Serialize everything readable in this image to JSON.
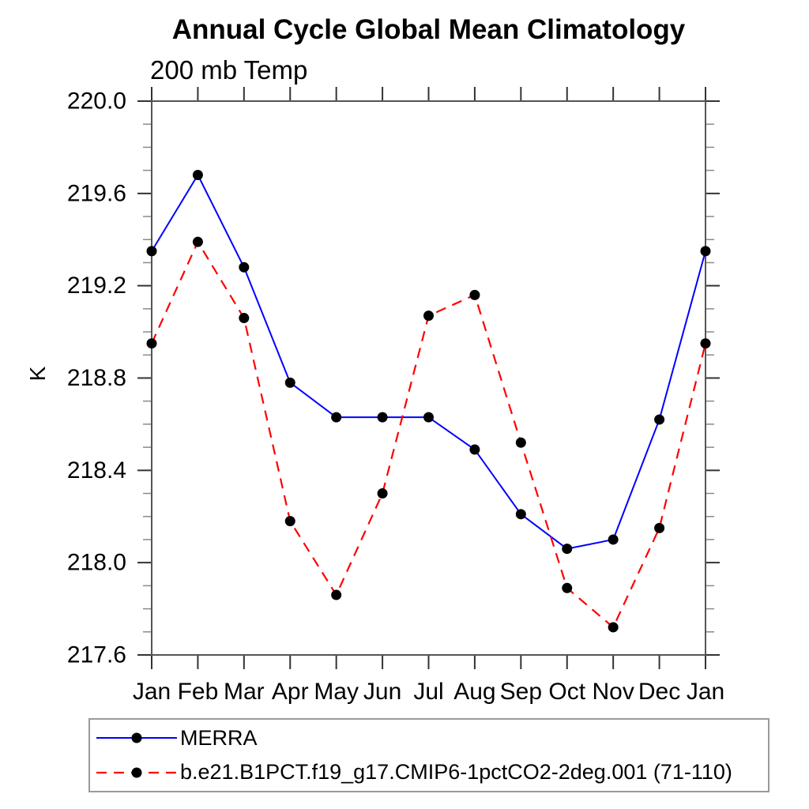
{
  "page": {
    "background": "#ffffff"
  },
  "chart_data": {
    "type": "line",
    "title": "Annual Cycle Global Mean Climatology",
    "subtitle": "200 mb Temp",
    "ylabel": "K",
    "x_categories": [
      "Jan",
      "Feb",
      "Mar",
      "Apr",
      "May",
      "Jun",
      "Jul",
      "Aug",
      "Sep",
      "Oct",
      "Nov",
      "Dec",
      "Jan"
    ],
    "ylim": [
      217.6,
      220.0
    ],
    "y_major_ticks": [
      "220.0",
      "219.6",
      "219.2",
      "218.8",
      "218.4",
      "218.0",
      "217.6"
    ],
    "y_minor_step": 0.1,
    "grid": false,
    "legend_position": "bottom-left-box",
    "axis_color": "#555555",
    "series": [
      {
        "name": "MERRA",
        "color": "#0000ff",
        "style": "solid",
        "marker": "circle",
        "marker_color": "#000000",
        "values": [
          219.35,
          219.68,
          219.28,
          218.78,
          218.63,
          218.63,
          218.63,
          218.49,
          218.21,
          218.06,
          218.1,
          218.62,
          219.35
        ]
      },
      {
        "name": "b.e21.B1PCT.f19_g17.CMIP6-1pctCO2-2deg.001 (71-110)",
        "color": "#ff0000",
        "style": "dashed",
        "marker": "circle",
        "marker_color": "#000000",
        "values": [
          218.95,
          219.39,
          219.06,
          218.18,
          217.86,
          218.3,
          219.07,
          219.16,
          218.52,
          217.89,
          217.72,
          218.15,
          218.95
        ]
      }
    ]
  }
}
